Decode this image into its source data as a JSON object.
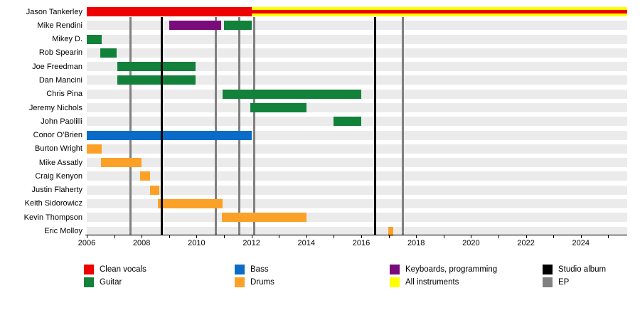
{
  "chart_data": {
    "type": "timeline",
    "x_axis": {
      "min_year": 2006,
      "max_year": 2025.7,
      "tick_interval": 1,
      "label_years": [
        "2006",
        "2008",
        "2010",
        "2012",
        "2014",
        "2016",
        "2018",
        "2020",
        "2022",
        "2024"
      ],
      "grid": "off",
      "row_track_color": "#EBEBEB"
    },
    "colors": {
      "Clean vocals": "#EE0000",
      "Guitar": "#12813A",
      "Bass": "#0A6CC8",
      "Drums": "#FCA128",
      "Keyboards, programming": "#7A0B7A",
      "All instruments": "#FFFF00",
      "Studio album": "#000000",
      "EP": "#808080"
    },
    "members": [
      {
        "name": "Jason Tankerley",
        "bars": [
          {
            "role": "Clean vocals",
            "start": 2006.0,
            "end": 2012.0
          },
          {
            "role": "All instruments",
            "start": 2012.0,
            "end": 2025.7,
            "overlay_role": "Clean vocals"
          }
        ]
      },
      {
        "name": "Mike Rendini",
        "bars": [
          {
            "role": "Keyboards, programming",
            "start": 2009.0,
            "end": 2010.9
          },
          {
            "role": "Guitar",
            "start": 2011.0,
            "end": 2012.0
          }
        ]
      },
      {
        "name": "Mikey D.",
        "bars": [
          {
            "role": "Guitar",
            "start": 2006.0,
            "end": 2006.55
          }
        ]
      },
      {
        "name": "Rob Spearin",
        "bars": [
          {
            "role": "Guitar",
            "start": 2006.5,
            "end": 2007.1
          }
        ]
      },
      {
        "name": "Joe Freedman",
        "bars": [
          {
            "role": "Guitar",
            "start": 2007.1,
            "end": 2009.95
          }
        ]
      },
      {
        "name": "Dan Mancini",
        "bars": [
          {
            "role": "Guitar",
            "start": 2007.1,
            "end": 2009.95
          }
        ]
      },
      {
        "name": "Chris Pina",
        "bars": [
          {
            "role": "Guitar",
            "start": 2010.95,
            "end": 2016.0
          }
        ]
      },
      {
        "name": "Jeremy Nichols",
        "bars": [
          {
            "role": "Guitar",
            "start": 2011.95,
            "end": 2014.0
          }
        ]
      },
      {
        "name": "John Paolilli",
        "bars": [
          {
            "role": "Guitar",
            "start": 2015.0,
            "end": 2016.0
          }
        ]
      },
      {
        "name": "Conor O'Brien",
        "bars": [
          {
            "role": "Bass",
            "start": 2006.0,
            "end": 2012.0
          }
        ]
      },
      {
        "name": "Burton Wright",
        "bars": [
          {
            "role": "Drums",
            "start": 2006.0,
            "end": 2006.55
          }
        ]
      },
      {
        "name": "Mike Assatly",
        "bars": [
          {
            "role": "Drums",
            "start": 2006.52,
            "end": 2008.0
          }
        ]
      },
      {
        "name": "Craig Kenyon",
        "bars": [
          {
            "role": "Drums",
            "start": 2007.95,
            "end": 2008.3
          }
        ]
      },
      {
        "name": "Justin Flaherty",
        "bars": [
          {
            "role": "Drums",
            "start": 2008.3,
            "end": 2008.65
          }
        ]
      },
      {
        "name": "Keith Sidorowicz",
        "bars": [
          {
            "role": "Drums",
            "start": 2008.6,
            "end": 2010.95
          }
        ]
      },
      {
        "name": "Kevin Thompson",
        "bars": [
          {
            "role": "Drums",
            "start": 2010.93,
            "end": 2014.0
          }
        ]
      },
      {
        "name": "Eric Molloy",
        "bars": [
          {
            "role": "Drums",
            "start": 2016.98,
            "end": 2017.18
          }
        ]
      }
    ],
    "releases": [
      {
        "type": "EP",
        "year": 2007.58
      },
      {
        "type": "Studio album",
        "year": 2008.72
      },
      {
        "type": "EP",
        "year": 2010.7
      },
      {
        "type": "EP",
        "year": 2011.55
      },
      {
        "type": "EP",
        "year": 2012.1
      },
      {
        "type": "Studio album",
        "year": 2016.5
      },
      {
        "type": "EP",
        "year": 2017.52
      }
    ],
    "legend": [
      {
        "label": "Clean vocals"
      },
      {
        "label": "Guitar"
      },
      {
        "label": "Bass"
      },
      {
        "label": "Drums"
      },
      {
        "label": "Keyboards, programming"
      },
      {
        "label": "All instruments"
      },
      {
        "label": "Studio album"
      },
      {
        "label": "EP"
      }
    ],
    "legend_position": "bottom"
  }
}
